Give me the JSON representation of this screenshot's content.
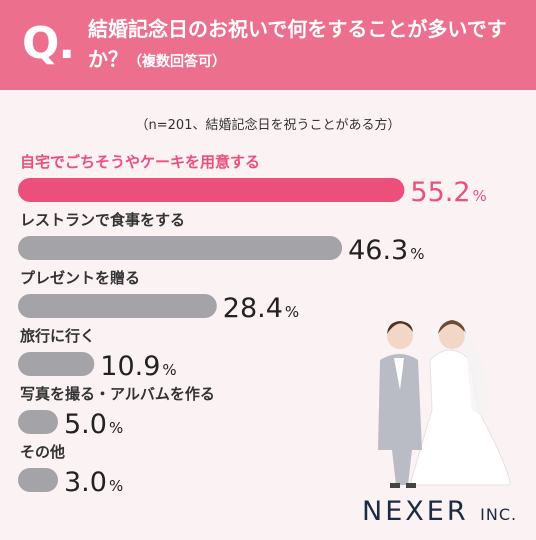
{
  "header": {
    "q_mark": "Q.",
    "question": "結婚記念日のお祝いで何をすることが多いですか？",
    "question_suffix": "（複数回答可）"
  },
  "note": "（n=201、結婚記念日を祝うことがある方）",
  "logo": {
    "name": "NEXER",
    "suffix": "INC."
  },
  "colors": {
    "highlight": "#ec4f7c",
    "bar": "#a3a3a8",
    "header": "#ec6f8e"
  },
  "chart_data": {
    "type": "bar",
    "orientation": "horizontal",
    "categories": [
      "自宅でごちそうやケーキを用意する",
      "レストランで食事をする",
      "プレゼントを贈る",
      "旅行に行く",
      "写真を撮る・アルバムを作る",
      "その他"
    ],
    "values": [
      55.2,
      46.3,
      28.4,
      10.9,
      5.0,
      3.0
    ],
    "unit": "%"
  }
}
